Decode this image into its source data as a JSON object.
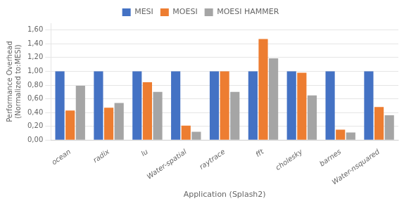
{
  "chart_data": {
    "type": "bar",
    "categories": [
      "ocean",
      "radix",
      "lu",
      "Water-spatial",
      "raytrace",
      "fft",
      "cholesky",
      "barnes",
      "Water-nsquared"
    ],
    "series": [
      {
        "name": "MESI",
        "color": "#4472C4",
        "values": [
          1.0,
          1.0,
          1.0,
          1.0,
          1.0,
          1.0,
          1.0,
          1.0,
          1.0
        ]
      },
      {
        "name": "MOESI",
        "color": "#ED7D31",
        "values": [
          0.43,
          0.47,
          0.84,
          0.21,
          1.0,
          1.47,
          0.98,
          0.15,
          0.48
        ]
      },
      {
        "name": "MOESI HAMMER",
        "color": "#A5A5A5",
        "values": [
          0.79,
          0.54,
          0.7,
          0.12,
          0.7,
          1.19,
          0.65,
          0.11,
          0.36
        ]
      }
    ],
    "ylabel": [
      "Performance Overhead",
      "(Normalized to:MESI)"
    ],
    "xlabel": "Application (Splash2)",
    "ylim": [
      0,
      1.7
    ],
    "yticks": [
      {
        "value": 0.0,
        "label": "0,00"
      },
      {
        "value": 0.2,
        "label": "0,20"
      },
      {
        "value": 0.4,
        "label": "0,40"
      },
      {
        "value": 0.6,
        "label": "0,60"
      },
      {
        "value": 0.8,
        "label": "0,80"
      },
      {
        "value": 1.0,
        "label": "1,00"
      },
      {
        "value": 1.2,
        "label": "1,20"
      },
      {
        "value": 1.4,
        "label": "1,40"
      },
      {
        "value": 1.6,
        "label": "1,60"
      }
    ],
    "grid": true,
    "legend": "top"
  }
}
